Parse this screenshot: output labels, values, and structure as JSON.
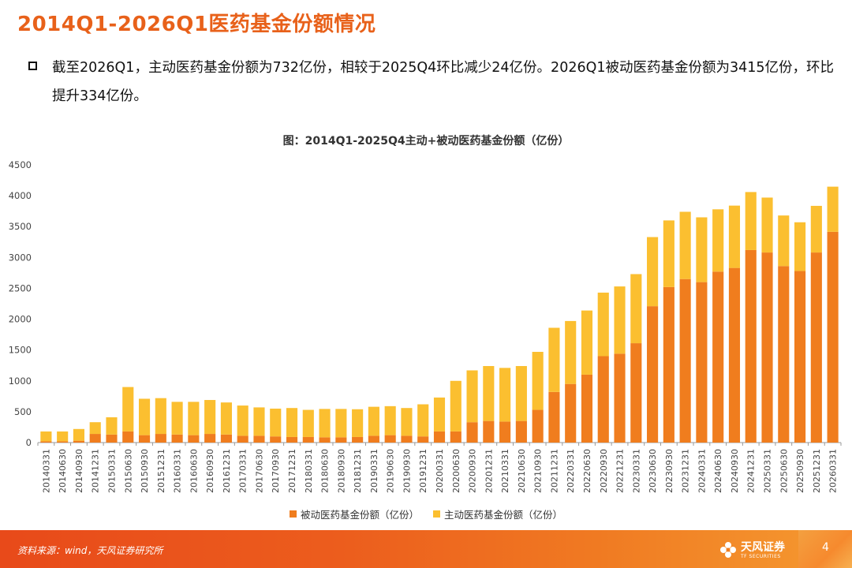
{
  "page": {
    "title": "2014Q1-2026Q1医药基金份额情况",
    "bullet": "截至2026Q1，主动医药基金份额为732亿份，相较于2025Q4环比减少24亿份。2026Q1被动医药基金份额为3415亿份，环比提升334亿份。",
    "source": "资料来源：wind，天风证券研究所",
    "logo_text": "天风证券",
    "logo_sub": "TF SECURITIES",
    "page_number": "4"
  },
  "colors": {
    "passive": "#f07d1e",
    "active": "#fbbf30",
    "accent": "#e8611a"
  },
  "chart_data": {
    "type": "bar",
    "stacked": true,
    "title": "图：2014Q1-2025Q4主动+被动医药基金份额（亿份）",
    "ylim": [
      0,
      4500
    ],
    "yticks": [
      0,
      500,
      1000,
      1500,
      2000,
      2500,
      3000,
      3500,
      4000,
      4500
    ],
    "legend_position": "bottom",
    "categories": [
      "20140331",
      "20140630",
      "20140930",
      "20141231",
      "20150331",
      "20150630",
      "20150930",
      "20151231",
      "20160331",
      "20160630",
      "20160930",
      "20161231",
      "20170331",
      "20170630",
      "20170930",
      "20171231",
      "20180331",
      "20180630",
      "20180930",
      "20181231",
      "20190331",
      "20190630",
      "20190930",
      "20191231",
      "20200331",
      "20200630",
      "20200930",
      "20201231",
      "20210331",
      "20210630",
      "20210930",
      "20211231",
      "20220331",
      "20220630",
      "20220930",
      "20221231",
      "20230331",
      "20230630",
      "20230930",
      "20231231",
      "20240331",
      "20240630",
      "20240930",
      "20241231",
      "20250331",
      "20250630",
      "20250930",
      "20251231",
      "20260331"
    ],
    "series": [
      {
        "name": "被动医药基金份额（亿份）",
        "values": [
          20,
          20,
          30,
          140,
          130,
          180,
          120,
          140,
          130,
          120,
          140,
          130,
          110,
          110,
          100,
          90,
          90,
          85,
          85,
          90,
          110,
          120,
          110,
          100,
          180,
          180,
          330,
          350,
          340,
          350,
          530,
          820,
          950,
          1100,
          1400,
          1440,
          1610,
          2210,
          2520,
          2650,
          2600,
          2770,
          2830,
          3120,
          3080,
          2860,
          2780,
          3080,
          3415
        ]
      },
      {
        "name": "主动医药基金份额（亿份）",
        "values": [
          160,
          160,
          190,
          190,
          280,
          720,
          590,
          580,
          530,
          540,
          550,
          520,
          490,
          460,
          450,
          470,
          440,
          460,
          460,
          450,
          470,
          470,
          450,
          520,
          550,
          820,
          840,
          890,
          870,
          890,
          940,
          1040,
          1020,
          1040,
          1030,
          1090,
          1120,
          1120,
          1080,
          1090,
          1050,
          1010,
          1010,
          940,
          890,
          820,
          790,
          756,
          732
        ]
      }
    ]
  }
}
